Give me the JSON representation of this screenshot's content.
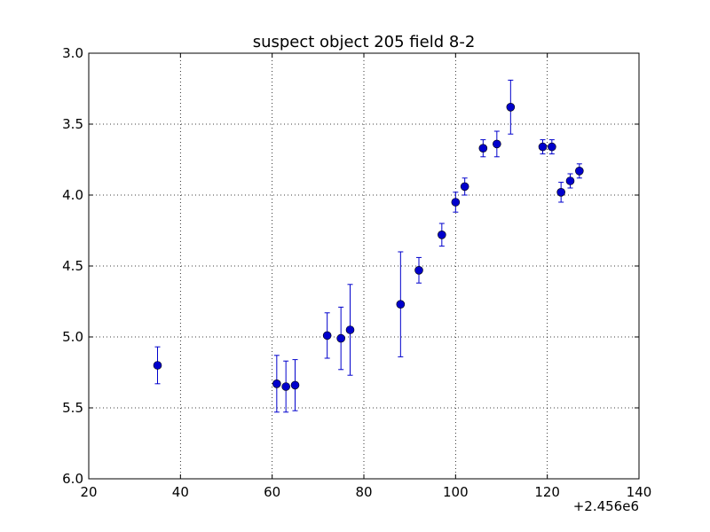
{
  "chart_data": {
    "type": "scatter",
    "title": "suspect object 205 field 8-2",
    "xlabel": "",
    "ylabel": "",
    "x_offset_label": "+2.456e6",
    "xlim": [
      20,
      140
    ],
    "ylim": [
      3.0,
      6.0
    ],
    "y_inverted": true,
    "grid": true,
    "x_ticks": [
      20,
      40,
      60,
      80,
      100,
      120,
      140
    ],
    "x_tick_labels": [
      "20",
      "40",
      "60",
      "80",
      "100",
      "120",
      "140"
    ],
    "y_ticks": [
      3.0,
      3.5,
      4.0,
      4.5,
      5.0,
      5.5,
      6.0
    ],
    "y_tick_labels": [
      "3.0",
      "3.5",
      "4.0",
      "4.5",
      "5.0",
      "5.5",
      "6.0"
    ],
    "series": [
      {
        "marker": "circle",
        "color": "#0000cc",
        "points": [
          {
            "x": 35.0,
            "y": 5.2,
            "err": 0.13
          },
          {
            "x": 61.0,
            "y": 5.33,
            "err": 0.2
          },
          {
            "x": 63.0,
            "y": 5.35,
            "err": 0.18
          },
          {
            "x": 65.0,
            "y": 5.34,
            "err": 0.18
          },
          {
            "x": 72.0,
            "y": 4.99,
            "err": 0.16
          },
          {
            "x": 75.0,
            "y": 5.01,
            "err": 0.22
          },
          {
            "x": 77.0,
            "y": 4.95,
            "err": 0.32
          },
          {
            "x": 88.0,
            "y": 4.77,
            "err": 0.37
          },
          {
            "x": 92.0,
            "y": 4.53,
            "err": 0.09
          },
          {
            "x": 97.0,
            "y": 4.28,
            "err": 0.08
          },
          {
            "x": 100.0,
            "y": 4.05,
            "err": 0.07
          },
          {
            "x": 102.0,
            "y": 3.94,
            "err": 0.06
          },
          {
            "x": 106.0,
            "y": 3.67,
            "err": 0.06
          },
          {
            "x": 109.0,
            "y": 3.64,
            "err": 0.09
          },
          {
            "x": 112.0,
            "y": 3.38,
            "err": 0.19
          },
          {
            "x": 119.0,
            "y": 3.66,
            "err": 0.05
          },
          {
            "x": 121.0,
            "y": 3.66,
            "err": 0.05
          },
          {
            "x": 123.0,
            "y": 3.98,
            "err": 0.07
          },
          {
            "x": 125.0,
            "y": 3.9,
            "err": 0.05
          },
          {
            "x": 127.0,
            "y": 3.83,
            "err": 0.05
          }
        ]
      }
    ]
  }
}
